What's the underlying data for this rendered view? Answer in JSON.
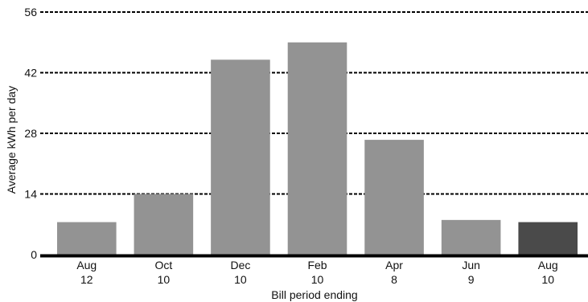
{
  "chart_data": {
    "type": "bar",
    "categories": [
      [
        "Aug",
        "12"
      ],
      [
        "Oct",
        "10"
      ],
      [
        "Dec",
        "10"
      ],
      [
        "Feb",
        "10"
      ],
      [
        "Apr",
        "8"
      ],
      [
        "Jun",
        "9"
      ],
      [
        "Aug",
        "10"
      ]
    ],
    "values": [
      7.5,
      14,
      45,
      49,
      26.5,
      8,
      7.5
    ],
    "highlight_index": 6,
    "title": "",
    "xlabel": "Bill period ending",
    "ylabel": "Average kWh per day",
    "ylim": [
      0,
      56
    ],
    "yticks": [
      0,
      14,
      28,
      42,
      56
    ],
    "grid": "horizontal dashed",
    "colors": {
      "bar": "#939393",
      "highlight": "#4a4a4a",
      "grid": "#000000",
      "axis": "#000000"
    }
  }
}
